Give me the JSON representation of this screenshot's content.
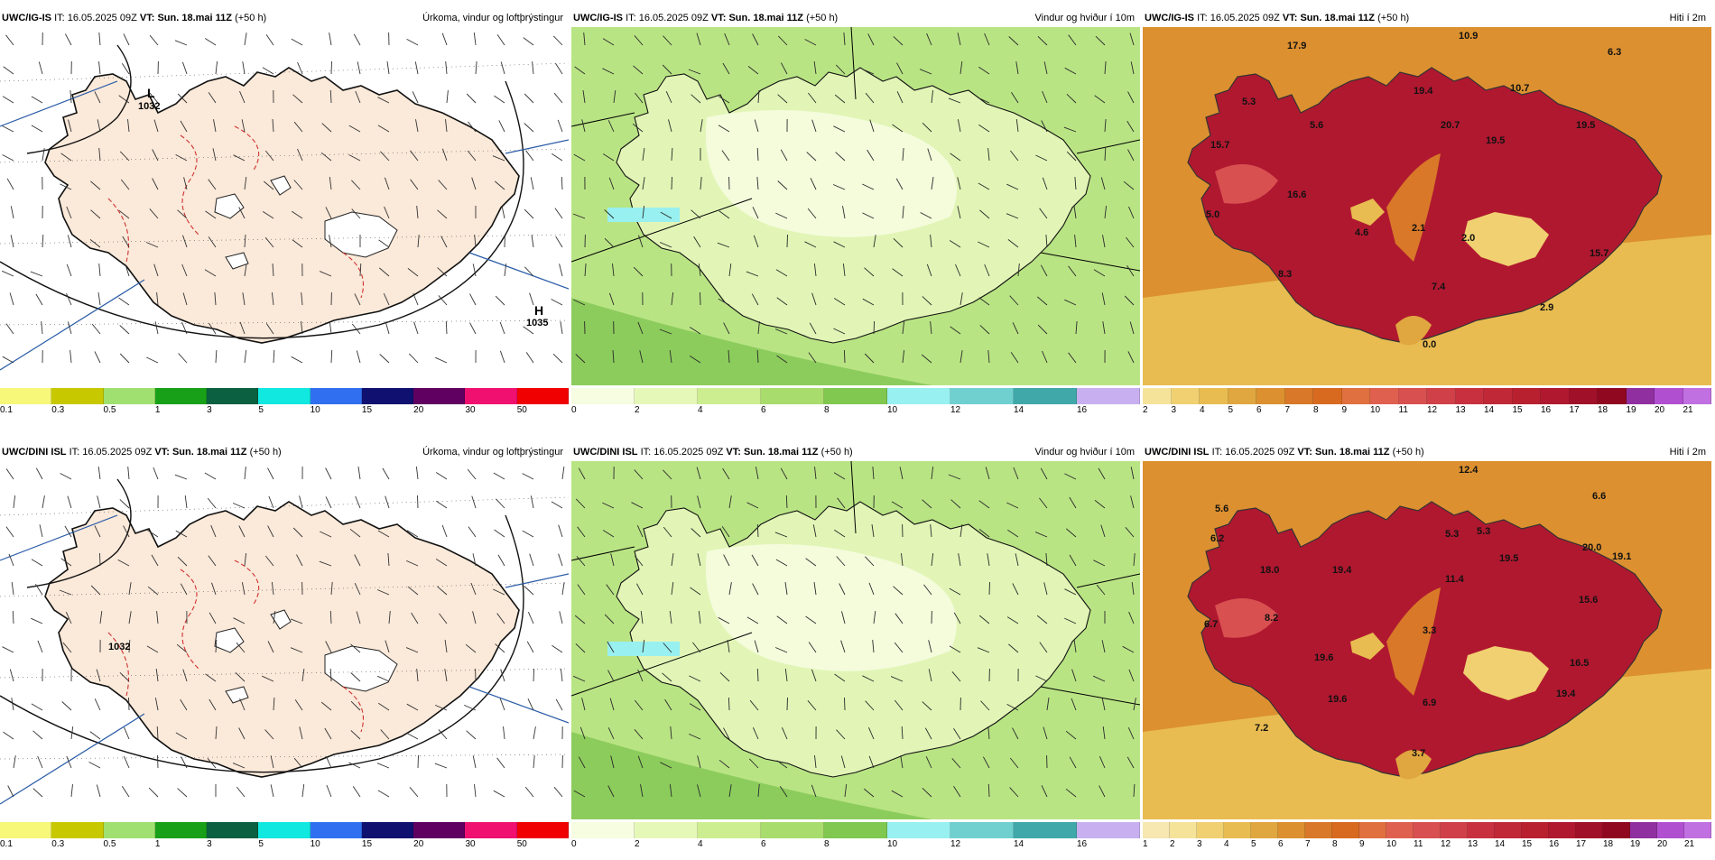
{
  "panels": [
    {
      "model": "UWC/IG-IS",
      "it_label": "IT:",
      "it_value": "16.05.2025 09Z",
      "vt_label": "VT:",
      "vt_value": "Sun. 18.mai 11Z",
      "lead": "(+50 h)",
      "title": "Úrkoma, vindur og loftþrýstingur",
      "kind": "precip",
      "labels": [
        "L",
        "1032",
        "H",
        "1035"
      ],
      "ticks": [
        "0.1",
        "0.3",
        "0.5",
        "1",
        "3",
        "5",
        "10",
        "15",
        "20",
        "30",
        "50"
      ],
      "colors": [
        "#f7f77a",
        "#c8c800",
        "#a0e070",
        "#18a018",
        "#0a6040",
        "#10e8e0",
        "#3070f0",
        "#101070",
        "#600060",
        "#f01070",
        "#f00000"
      ]
    },
    {
      "model": "UWC/IG-IS",
      "it_label": "IT:",
      "it_value": "16.05.2025 09Z",
      "vt_label": "VT:",
      "vt_value": "Sun. 18.mai 11Z",
      "lead": "(+50 h)",
      "title": "Vindur og hviður í 10m",
      "kind": "wind",
      "labels": [],
      "ticks": [
        "0",
        "2",
        "4",
        "6",
        "8",
        "10",
        "12",
        "14",
        "16"
      ],
      "colors": [
        "#f7fde0",
        "#e6f8b8",
        "#cdee90",
        "#a8dc6c",
        "#80c850",
        "#98f0f0",
        "#70d0d0",
        "#40a8a8",
        "#c8b0f0"
      ]
    },
    {
      "model": "UWC/IG-IS",
      "it_label": "IT:",
      "it_value": "16.05.2025 09Z",
      "vt_label": "VT:",
      "vt_value": "Sun. 18.mai 11Z",
      "lead": "(+50 h)",
      "title": "Hiti í 2m",
      "kind": "temp",
      "labels": [
        "10.9",
        "17.9",
        "6.3",
        "5.3",
        "19.4",
        "10.7",
        "5.6",
        "20.7",
        "19.5",
        "15.7",
        "19.5",
        "16.6",
        "5.0",
        "4.6",
        "2.1",
        "2.0",
        "15.7",
        "8.3",
        "7.4",
        "2.9",
        "0.0"
      ],
      "ticks": [
        "2",
        "3",
        "4",
        "5",
        "6",
        "7",
        "8",
        "9",
        "10",
        "11",
        "12",
        "13",
        "14",
        "15",
        "16",
        "17",
        "18",
        "19",
        "20",
        "21"
      ],
      "colors": [
        "#f6e39a",
        "#f0d070",
        "#e8bc50",
        "#e0a640",
        "#dc9030",
        "#d87828",
        "#d86a20",
        "#e07040",
        "#e06050",
        "#d85050",
        "#d04048",
        "#c83040",
        "#c02838",
        "#b82030",
        "#b01830",
        "#a01028",
        "#900820",
        "#9030a0",
        "#b050d0",
        "#c070e0"
      ]
    },
    {
      "model": "UWC/DINI ISL",
      "it_label": "IT:",
      "it_value": "16.05.2025 09Z",
      "vt_label": "VT:",
      "vt_value": "Sun. 18.mai 11Z",
      "lead": "(+50 h)",
      "title": "Úrkoma, vindur og loftþrýstingur",
      "kind": "precip",
      "labels": [
        "1032"
      ],
      "ticks": [
        "0.1",
        "0.3",
        "0.5",
        "1",
        "3",
        "5",
        "10",
        "15",
        "20",
        "30",
        "50"
      ],
      "colors": [
        "#f7f77a",
        "#c8c800",
        "#a0e070",
        "#18a018",
        "#0a6040",
        "#10e8e0",
        "#3070f0",
        "#101070",
        "#600060",
        "#f01070",
        "#f00000"
      ]
    },
    {
      "model": "UWC/DINI ISL",
      "it_label": "IT:",
      "it_value": "16.05.2025 09Z",
      "vt_label": "VT:",
      "vt_value": "Sun. 18.mai 11Z",
      "lead": "(+50 h)",
      "title": "Vindur og hviður í 10m",
      "kind": "wind",
      "labels": [],
      "ticks": [
        "0",
        "2",
        "4",
        "6",
        "8",
        "10",
        "12",
        "14",
        "16"
      ],
      "colors": [
        "#f7fde0",
        "#e6f8b8",
        "#cdee90",
        "#a8dc6c",
        "#80c850",
        "#98f0f0",
        "#70d0d0",
        "#40a8a8",
        "#c8b0f0"
      ]
    },
    {
      "model": "UWC/DINI ISL",
      "it_label": "IT:",
      "it_value": "16.05.2025 09Z",
      "vt_label": "VT:",
      "vt_value": "Sun. 18.mai 11Z",
      "lead": "(+50 h)",
      "title": "Hiti í 2m",
      "kind": "temp",
      "labels": [
        "12.4",
        "5.6",
        "6.6",
        "5.3",
        "5.3",
        "6.2",
        "18.0",
        "19.4",
        "19.5",
        "20.0",
        "19.1",
        "11.4",
        "15.6",
        "6.7",
        "8.2",
        "19.6",
        "3.3",
        "16.5",
        "19.6",
        "6.9",
        "19.4",
        "7.2",
        "3.7"
      ],
      "ticks": [
        "1",
        "2",
        "3",
        "4",
        "5",
        "6",
        "7",
        "8",
        "9",
        "10",
        "11",
        "12",
        "13",
        "14",
        "15",
        "16",
        "17",
        "18",
        "19",
        "20",
        "21"
      ],
      "colors": [
        "#f6e8b0",
        "#f6e39a",
        "#f0d070",
        "#e8bc50",
        "#e0a640",
        "#dc9030",
        "#d87828",
        "#d86a20",
        "#e07040",
        "#e06050",
        "#d85050",
        "#d04048",
        "#c83040",
        "#c02838",
        "#b82030",
        "#b01830",
        "#a01028",
        "#900820",
        "#9030a0",
        "#b050d0",
        "#c070e0"
      ]
    }
  ]
}
